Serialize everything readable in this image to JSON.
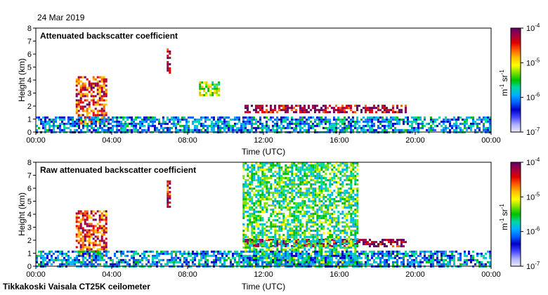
{
  "date_label": "24 Mar 2019",
  "footer": "Tikkakoski Vaisala CT25K ceilometer",
  "colors": {
    "missing": "#d6d6d6",
    "scale": [
      "#ebebff",
      "#b0b0ff",
      "#4646ff",
      "#0000c8",
      "#0060ff",
      "#00b0ff",
      "#00d8a0",
      "#00c000",
      "#80e000",
      "#ffff00",
      "#ffc000",
      "#ff6000",
      "#e00000",
      "#a00040",
      "#600060"
    ]
  },
  "chart_data": [
    {
      "type": "heatmap",
      "title": "Attenuated backscatter coefficient",
      "xlabel": "Time (UTC)",
      "ylabel": "Height (km)",
      "xlim": [
        "00:00",
        "24:00"
      ],
      "ylim": [
        0,
        8
      ],
      "x_ticks": [
        "00:00",
        "04:00",
        "08:00",
        "12:00",
        "16:00",
        "20:00",
        "00:00"
      ],
      "y_ticks": [
        "0",
        "1",
        "2",
        "3",
        "4",
        "5",
        "6",
        "7",
        "8"
      ],
      "colorbar": {
        "scale": "log",
        "range": [
          1e-07,
          0.0001
        ],
        "tick_labels": [
          "10-7",
          "10-6",
          "10-5",
          "10-4"
        ],
        "unit": "m-1 sr-1"
      },
      "features": [
        {
          "time_start": 2.1,
          "time_end": 3.7,
          "height_bottom": 0.6,
          "height_top": 4.3,
          "level": 0.8
        },
        {
          "time_start": 6.9,
          "time_end": 7.1,
          "height_bottom": 4.6,
          "height_top": 6.6,
          "level": 0.85
        },
        {
          "time_start": 8.6,
          "time_end": 9.7,
          "height_bottom": 2.8,
          "height_top": 3.9,
          "level": 0.55
        },
        {
          "time_start": 11.0,
          "time_end": 19.5,
          "height_bottom": 1.5,
          "height_top": 2.1,
          "level": 0.9
        },
        {
          "time_start": 0.0,
          "time_end": 24.0,
          "height_bottom": 0.0,
          "height_top": 1.2,
          "level": 0.3
        }
      ]
    },
    {
      "type": "heatmap",
      "title": "Raw attenuated backscatter coefficient",
      "xlabel": "Time (UTC)",
      "ylabel": "Height (km)",
      "xlim": [
        "00:00",
        "24:00"
      ],
      "ylim": [
        0,
        8
      ],
      "x_ticks": [
        "00:00",
        "04:00",
        "08:00",
        "12:00",
        "16:00",
        "20:00",
        "00:00"
      ],
      "y_ticks": [
        "0",
        "1",
        "2",
        "3",
        "4",
        "5",
        "6",
        "7",
        "8"
      ],
      "colorbar": {
        "scale": "log",
        "range": [
          1e-07,
          0.0001
        ],
        "tick_labels": [
          "10-7",
          "10-6",
          "10-5",
          "10-4"
        ],
        "unit": "m-1 sr-1"
      },
      "features": [
        {
          "time_start": 2.1,
          "time_end": 3.7,
          "height_bottom": 0.6,
          "height_top": 4.3,
          "level": 0.8
        },
        {
          "time_start": 6.9,
          "time_end": 7.1,
          "height_bottom": 4.6,
          "height_top": 6.6,
          "level": 0.85
        },
        {
          "time_start": 11.0,
          "time_end": 19.5,
          "height_bottom": 1.5,
          "height_top": 2.1,
          "level": 0.9
        },
        {
          "time_start": 10.9,
          "time_end": 17.0,
          "height_bottom": 0.0,
          "height_top": 8.0,
          "level": 0.45
        },
        {
          "time_start": 0.0,
          "time_end": 24.0,
          "height_bottom": 0.0,
          "height_top": 1.2,
          "level": 0.3
        }
      ]
    }
  ]
}
